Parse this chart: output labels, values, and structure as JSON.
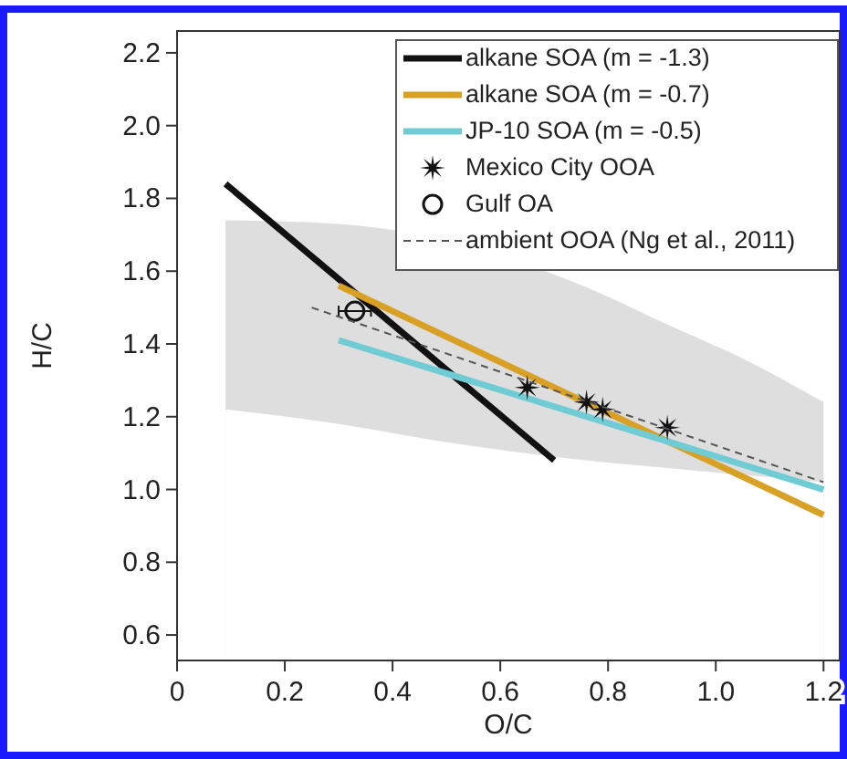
{
  "chart_data": {
    "type": "line",
    "xlabel": "O/C",
    "ylabel": "H/C",
    "xlim": [
      0,
      1.23
    ],
    "ylim": [
      0.53,
      2.26
    ],
    "xticks": [
      0,
      {
        "value": 0.2,
        "label": "0.2"
      },
      {
        "value": 0.4,
        "label": "0.4"
      },
      {
        "value": 0.6,
        "label": "0.6"
      },
      {
        "value": 0.8,
        "label": "0.8"
      },
      {
        "value": 1.0,
        "label": "1.0"
      },
      {
        "value": 1.2,
        "label": "1.2"
      }
    ],
    "yticks": [
      {
        "value": 0.6,
        "label": "0.6"
      },
      {
        "value": 0.8,
        "label": "0.8"
      },
      {
        "value": 1.0,
        "label": "1.0"
      },
      {
        "value": 1.2,
        "label": "1.2"
      },
      {
        "value": 1.4,
        "label": "1.4"
      },
      {
        "value": 1.6,
        "label": "1.6"
      },
      {
        "value": 1.8,
        "label": "1.8"
      },
      {
        "value": 2.0,
        "label": "2.0"
      },
      {
        "value": 2.2,
        "label": "2.2"
      }
    ],
    "grid": false,
    "legend": "top right",
    "series": [
      {
        "type": "area",
        "color": "#dedede",
        "x": [
          0.09,
          0.3,
          0.8,
          0.9,
          1.05,
          1.2
        ],
        "values": [
          1.74,
          1.73,
          1.53,
          1.46,
          1.36,
          1.24
        ]
      },
      {
        "type": "area",
        "color": "#ffffff",
        "x": [
          0.09,
          0.3,
          0.5,
          0.7,
          0.9,
          1.05,
          1.2
        ],
        "values": [
          1.22,
          1.18,
          1.13,
          1.09,
          1.06,
          1.04,
          1.02
        ]
      },
      {
        "name": "alkane SOA (m = -1.3)",
        "color": "#111111",
        "marker": "none",
        "line_style": "solid",
        "x": [
          0.09,
          0.7
        ],
        "values": [
          1.84,
          1.08
        ]
      },
      {
        "name": "alkane SOA (m = -0.7)",
        "color": "#d8a024",
        "marker": "none",
        "line_style": "solid",
        "x": [
          0.3,
          1.2
        ],
        "values": [
          1.56,
          0.93
        ]
      },
      {
        "name": "JP-10 SOA (m = -0.5)",
        "color": "#70ccd4",
        "marker": "none",
        "line_style": "solid",
        "x": [
          0.3,
          1.2
        ],
        "values": [
          1.41,
          1.0
        ]
      },
      {
        "type": "scatter",
        "name": "Mexico City OOA",
        "color": "#111111",
        "marker": "star",
        "x": [
          0.65,
          0.76,
          0.79,
          0.91
        ],
        "values": [
          1.28,
          1.24,
          1.22,
          1.17
        ]
      },
      {
        "type": "scatter",
        "name": "Gulf OA",
        "color": "#111111",
        "marker": "circle",
        "x": [
          0.33
        ],
        "values": [
          1.49
        ],
        "xerrors": [
          0.03
        ]
      },
      {
        "name": "ambient OOA (Ng et al., 2011)",
        "color": "#555555",
        "marker": "none",
        "line_style": "dashed",
        "x": [
          0.25,
          1.2
        ],
        "values": [
          1.5,
          1.02
        ]
      }
    ]
  }
}
